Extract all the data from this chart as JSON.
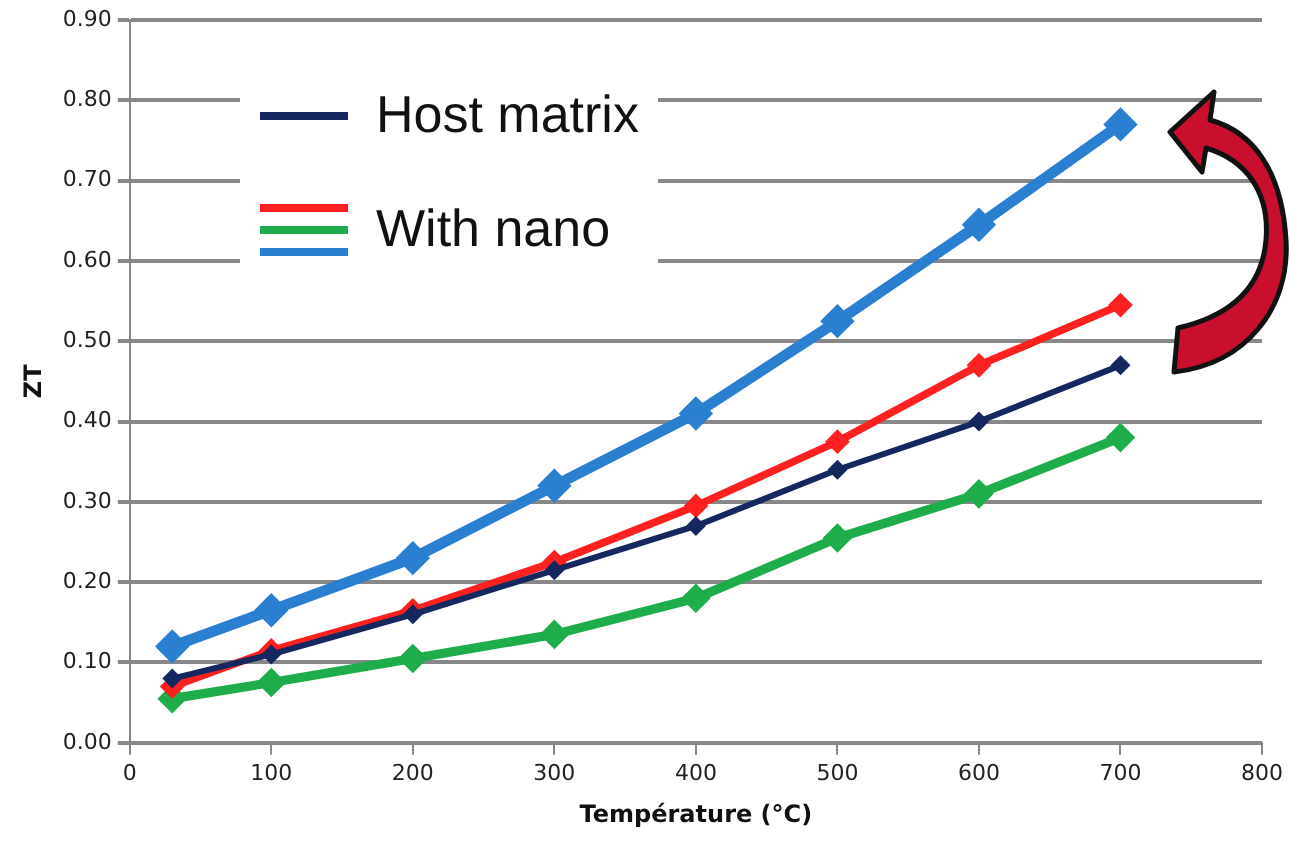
{
  "chart_data": {
    "type": "line",
    "xlabel": "Température (°C)",
    "ylabel": "ZT",
    "x": [
      30,
      100,
      200,
      300,
      400,
      500,
      600,
      700
    ],
    "xlim": [
      0,
      800
    ],
    "xticks": [
      0,
      100,
      200,
      300,
      400,
      500,
      600,
      700,
      800
    ],
    "ylim": [
      0,
      0.9
    ],
    "yticks": [
      {
        "value": 0,
        "label": "0.00"
      },
      {
        "value": 0.1,
        "label": "0.10"
      },
      {
        "value": 0.2,
        "label": "0.20"
      },
      {
        "value": 0.3,
        "label": "0.30"
      },
      {
        "value": 0.4,
        "label": "0.40"
      },
      {
        "value": 0.5,
        "label": "0.50"
      },
      {
        "value": 0.6,
        "label": "0.60"
      },
      {
        "value": 0.7,
        "label": "0.70"
      },
      {
        "value": 0.8,
        "label": "0.80"
      },
      {
        "value": 0.9,
        "label": "0.90"
      }
    ],
    "grid": "y",
    "legend": "top left",
    "marker": "diamond",
    "line_style": "solid",
    "series": [
      {
        "name": "Host matrix",
        "color": "#14285f",
        "values": [
          0.08,
          0.11,
          0.16,
          0.215,
          0.27,
          0.34,
          0.4,
          0.47
        ]
      },
      {
        "name": "With nano",
        "color": "#ff2020",
        "values": [
          0.07,
          0.115,
          0.165,
          0.225,
          0.295,
          0.375,
          0.47,
          0.545
        ]
      },
      {
        "color": "#1ead4a",
        "values": [
          0.055,
          0.075,
          0.105,
          0.135,
          0.18,
          0.255,
          0.31,
          0.38
        ]
      },
      {
        "color": "#2a7fd0",
        "values": [
          0.12,
          0.165,
          0.23,
          0.32,
          0.41,
          0.525,
          0.645,
          0.77
        ]
      }
    ]
  }
}
